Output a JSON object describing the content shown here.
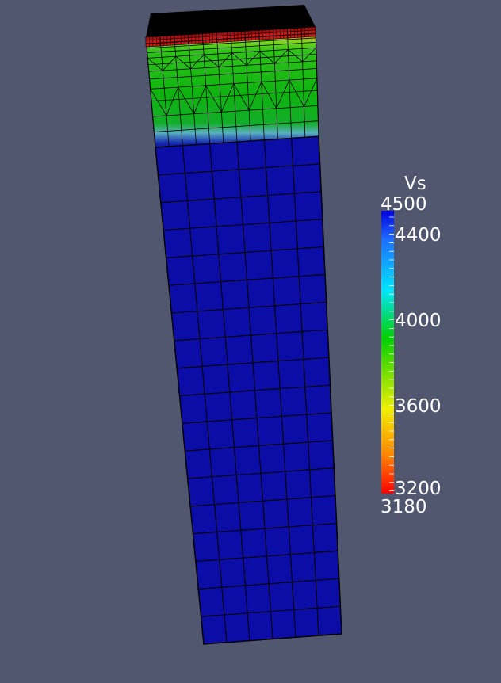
{
  "colorbar": {
    "title": "Vs",
    "range_max_label": "4500",
    "range_min_label": "3180",
    "ticks": [
      "4400",
      "4000",
      "3600",
      "3200"
    ],
    "range": [
      3180,
      4500
    ],
    "colormap": [
      "#0000e0",
      "#1e6cff",
      "#00e6ff",
      "#00d000",
      "#f0f000",
      "#ff8800",
      "#ff0000"
    ]
  },
  "mesh": {
    "field": "Vs",
    "colors": {
      "top_face": "#000000",
      "low_velocity": "#c41414",
      "transition": "#e0a020",
      "mid": "#4ecf22",
      "green": "#12b512",
      "high_velocity": "#0b0da6",
      "edges": "#000000",
      "background": "#525770"
    }
  }
}
